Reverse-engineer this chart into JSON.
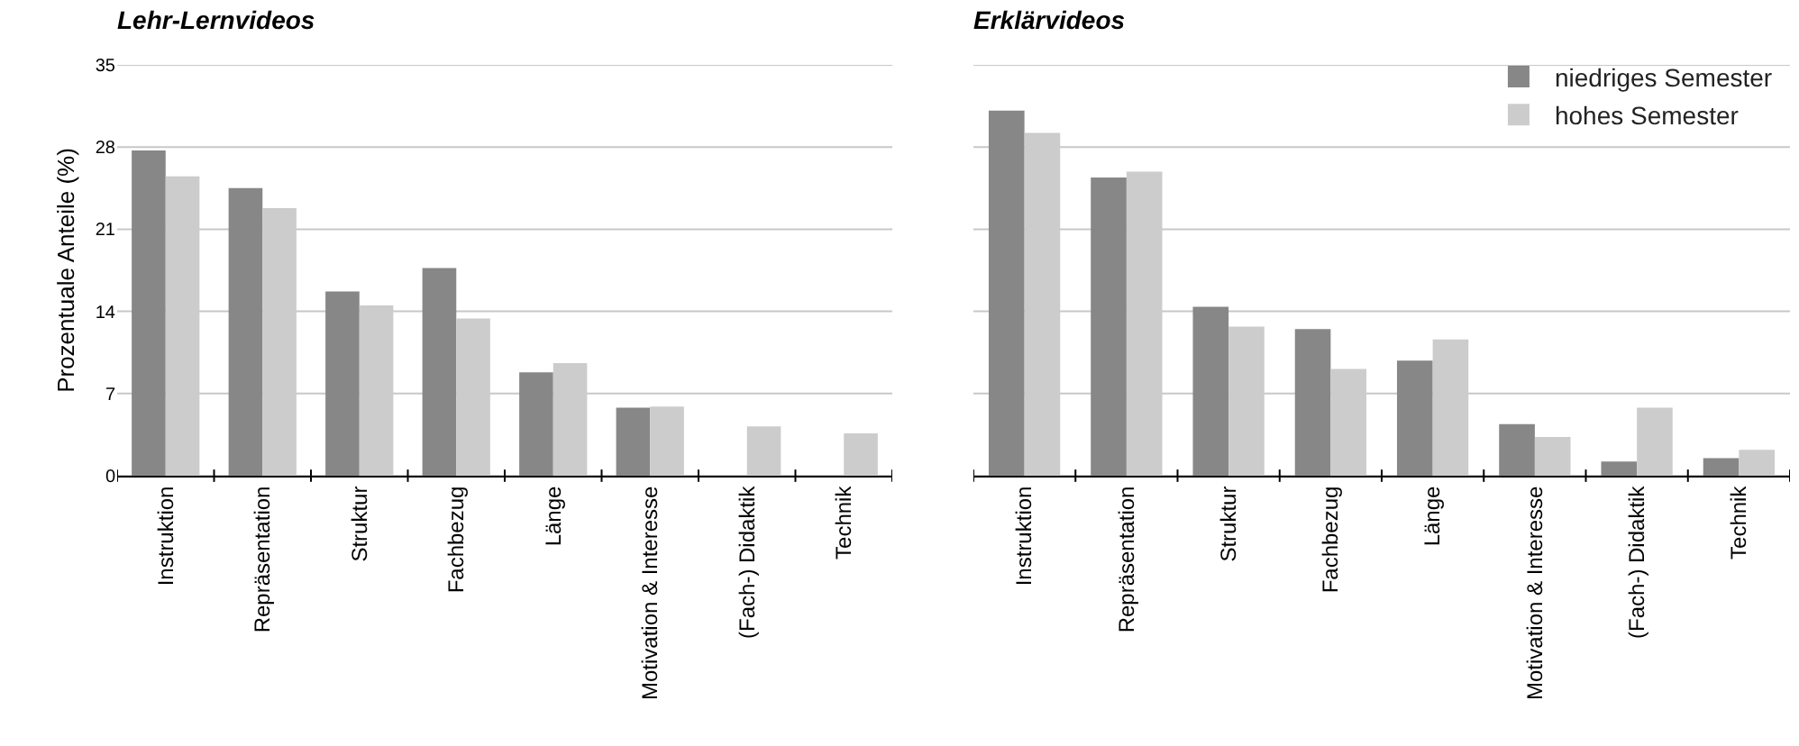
{
  "chart_data": [
    {
      "type": "bar",
      "title": "Lehr-Lernvideos",
      "ylabel": "Prozentuale Anteile (%)",
      "categories": [
        "Instruktion",
        "Repräsentation",
        "Struktur",
        "Fachbezug",
        "Länge",
        "Motivation & Interesse",
        "(Fach-) Didaktik",
        "Technik"
      ],
      "series": [
        {
          "color": "#878787",
          "values": [
            27.7,
            24.5,
            15.7,
            17.7,
            8.8,
            5.8,
            0,
            0
          ]
        },
        {
          "color": "#cccccc",
          "values": [
            25.5,
            22.8,
            14.5,
            13.4,
            9.6,
            5.9,
            4.2,
            3.6
          ]
        }
      ],
      "ylim": [
        0,
        35
      ],
      "yticks": [
        0,
        7,
        14,
        21,
        28,
        35
      ],
      "grid": "y",
      "legend": false
    },
    {
      "type": "bar",
      "title": "Erklärvideos",
      "categories": [
        "Instruktion",
        "Repräsentation",
        "Struktur",
        "Fachbezug",
        "Länge",
        "Motivation & Interesse",
        "(Fach-) Didaktik",
        "Technik"
      ],
      "series": [
        {
          "name": "niedriges Semester",
          "color": "#878787",
          "values": [
            31.1,
            25.4,
            14.4,
            12.5,
            9.8,
            4.4,
            1.2,
            1.5
          ]
        },
        {
          "name": "hohes Semester",
          "color": "#cccccc",
          "values": [
            29.2,
            25.9,
            12.7,
            9.1,
            11.6,
            3.3,
            5.8,
            2.2
          ]
        }
      ],
      "ylim": [
        0,
        35
      ],
      "yticks": [
        0,
        7,
        14,
        21,
        28,
        35
      ],
      "grid": "y",
      "legend": "top right",
      "tick_labels": "x"
    }
  ]
}
